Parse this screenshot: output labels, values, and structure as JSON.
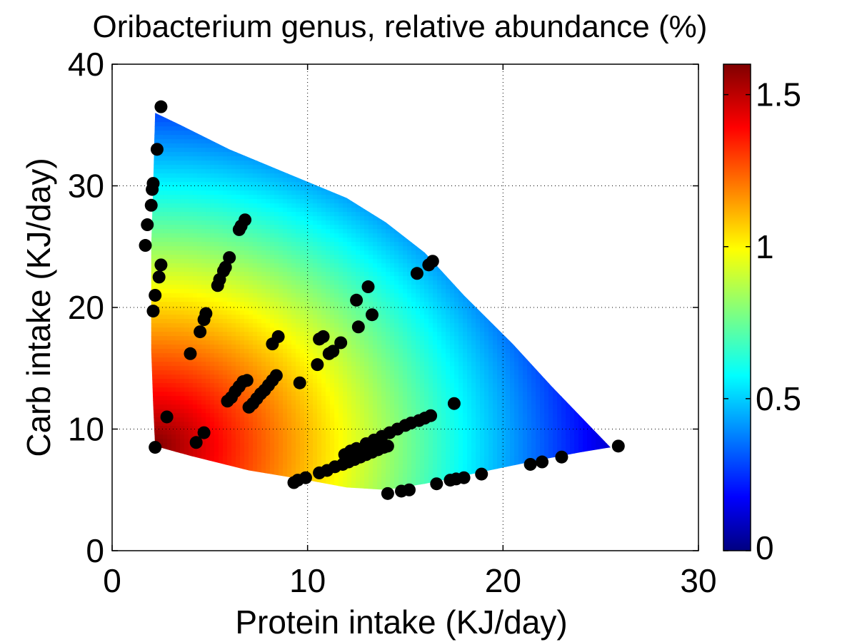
{
  "chart_data": {
    "type": "scatter",
    "title": "Oribacterium genus, relative abundance (%)",
    "xlabel": "Protein intake (KJ/day)",
    "ylabel": "Carb intake (KJ/day)",
    "xlim": [
      0,
      30
    ],
    "ylim": [
      0,
      40
    ],
    "xticks": [
      "0",
      "10",
      "20",
      "30"
    ],
    "yticks": [
      "0",
      "10",
      "20",
      "30",
      "40"
    ],
    "grid": true,
    "colorbar": {
      "label": "",
      "range": [
        0,
        1.6
      ],
      "ticks": [
        "0",
        "0.5",
        "1",
        "1.5"
      ],
      "colormap": "jet"
    },
    "surface": {
      "description_colormap": "jet",
      "peak_point": [
        2.2,
        8.6
      ],
      "boundary": [
        [
          2.2,
          36
        ],
        [
          3.5,
          35
        ],
        [
          6,
          33
        ],
        [
          9,
          31
        ],
        [
          12,
          29
        ],
        [
          14,
          27
        ],
        [
          16,
          24.5
        ],
        [
          18,
          21
        ],
        [
          20.5,
          17
        ],
        [
          22.5,
          13.5
        ],
        [
          24,
          11
        ],
        [
          25.5,
          8.5
        ],
        [
          24,
          8.1
        ],
        [
          22,
          7.5
        ],
        [
          19,
          6.5
        ],
        [
          16,
          5.5
        ],
        [
          14,
          5
        ],
        [
          12,
          5.2
        ],
        [
          10,
          5.8
        ],
        [
          7,
          6.6
        ],
        [
          4,
          7.8
        ],
        [
          2.2,
          8.6
        ],
        [
          2.1,
          12
        ],
        [
          2.0,
          16.5
        ],
        [
          2.0,
          20
        ],
        [
          2.0,
          25
        ],
        [
          2.1,
          30
        ]
      ]
    },
    "points": [
      [
        2.5,
        36.5
      ],
      [
        2.3,
        33
      ],
      [
        2.1,
        30.2
      ],
      [
        2.05,
        29.7
      ],
      [
        2.0,
        28.4
      ],
      [
        1.8,
        26.8
      ],
      [
        1.7,
        25.1
      ],
      [
        2.5,
        23.5
      ],
      [
        2.4,
        22.5
      ],
      [
        2.2,
        21
      ],
      [
        2.1,
        19.7
      ],
      [
        2.2,
        8.5
      ],
      [
        2.8,
        11
      ],
      [
        4.0,
        16.2
      ],
      [
        4.5,
        18
      ],
      [
        4.7,
        19
      ],
      [
        4.8,
        19.5
      ],
      [
        4.3,
        8.9
      ],
      [
        4.7,
        9.7
      ],
      [
        5.4,
        21.8
      ],
      [
        5.5,
        22.3
      ],
      [
        5.7,
        23
      ],
      [
        5.8,
        23.3
      ],
      [
        6.0,
        24.1
      ],
      [
        6.5,
        26.4
      ],
      [
        6.6,
        26.7
      ],
      [
        6.8,
        27.2
      ],
      [
        5.9,
        12.3
      ],
      [
        6.1,
        12.6
      ],
      [
        6.3,
        13.1
      ],
      [
        6.5,
        13.5
      ],
      [
        6.7,
        13.9
      ],
      [
        6.9,
        14.0
      ],
      [
        7.0,
        11.8
      ],
      [
        7.2,
        12.1
      ],
      [
        7.4,
        12.5
      ],
      [
        7.6,
        12.9
      ],
      [
        7.8,
        13.2
      ],
      [
        8.0,
        13.6
      ],
      [
        8.2,
        14.0
      ],
      [
        8.4,
        14.4
      ],
      [
        8.2,
        17
      ],
      [
        8.5,
        17.6
      ],
      [
        9.6,
        13.8
      ],
      [
        9.3,
        5.6
      ],
      [
        9.5,
        5.8
      ],
      [
        9.9,
        6.0
      ],
      [
        10.5,
        15.3
      ],
      [
        10.6,
        17.4
      ],
      [
        10.8,
        17.6
      ],
      [
        11.1,
        16.2
      ],
      [
        11.3,
        16.4
      ],
      [
        11.7,
        17.1
      ],
      [
        10.6,
        6.4
      ],
      [
        11.0,
        6.6
      ],
      [
        11.4,
        6.9
      ],
      [
        11.8,
        7.1
      ],
      [
        12.1,
        7.3
      ],
      [
        12.4,
        7.5
      ],
      [
        12.7,
        7.7
      ],
      [
        13.0,
        7.9
      ],
      [
        13.3,
        8.1
      ],
      [
        13.6,
        8.3
      ],
      [
        13.9,
        8.5
      ],
      [
        14.1,
        8.6
      ],
      [
        11.9,
        7.9
      ],
      [
        12.2,
        8.2
      ],
      [
        12.5,
        8.4
      ],
      [
        13.0,
        8.8
      ],
      [
        13.4,
        9.1
      ],
      [
        13.8,
        9.4
      ],
      [
        14.2,
        9.7
      ],
      [
        14.6,
        10.0
      ],
      [
        15.0,
        10.3
      ],
      [
        15.3,
        10.5
      ],
      [
        15.7,
        10.7
      ],
      [
        16.0,
        10.9
      ],
      [
        16.3,
        11.1
      ],
      [
        12.5,
        20.6
      ],
      [
        12.6,
        18.4
      ],
      [
        13.1,
        21.7
      ],
      [
        13.3,
        19.4
      ],
      [
        15.6,
        22.8
      ],
      [
        16.2,
        23.5
      ],
      [
        16.4,
        23.8
      ],
      [
        17.5,
        12.1
      ],
      [
        14.1,
        4.7
      ],
      [
        14.8,
        4.9
      ],
      [
        15.2,
        5.0
      ],
      [
        16.6,
        5.5
      ],
      [
        17.3,
        5.8
      ],
      [
        17.6,
        5.9
      ],
      [
        18.0,
        6.0
      ],
      [
        18.9,
        6.3
      ],
      [
        21.4,
        7.1
      ],
      [
        22.0,
        7.3
      ],
      [
        23.0,
        7.7
      ],
      [
        25.9,
        8.6
      ]
    ]
  }
}
